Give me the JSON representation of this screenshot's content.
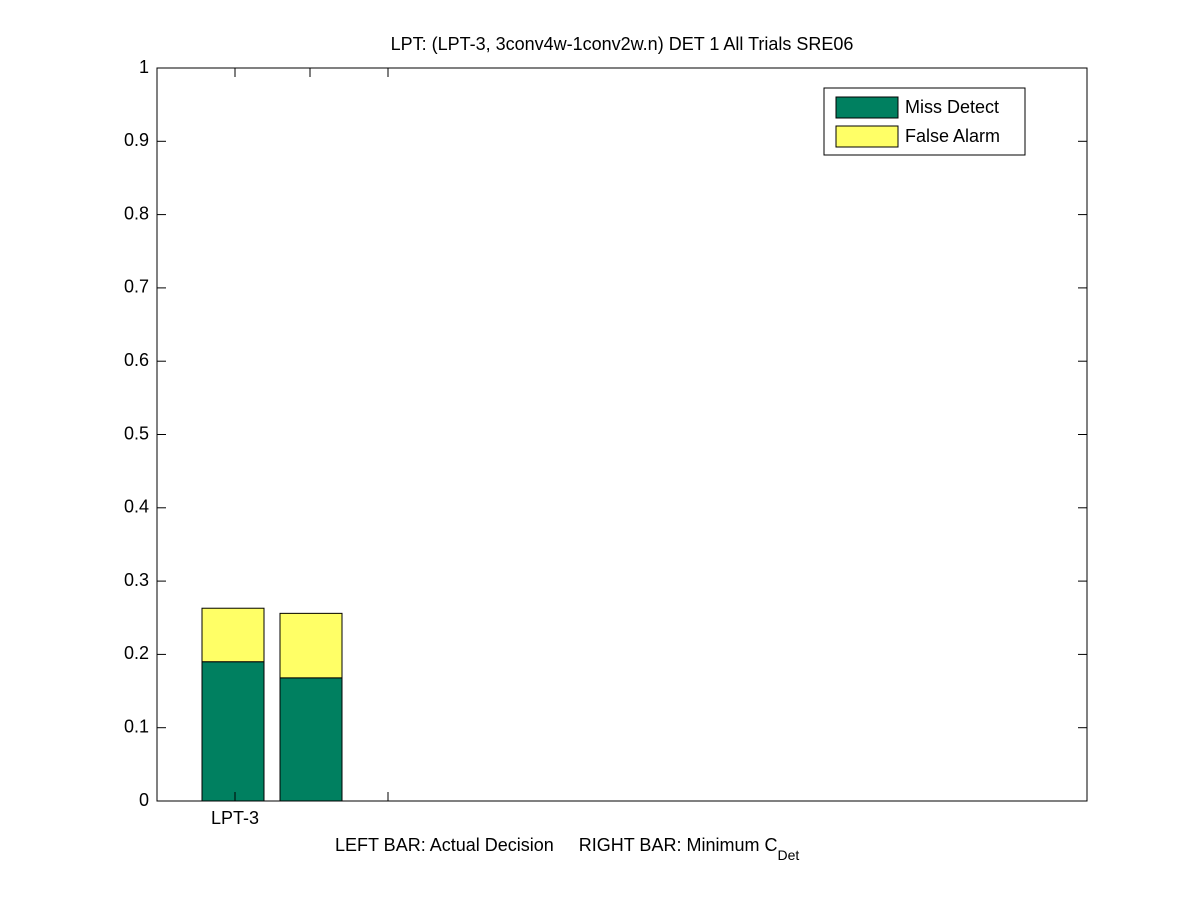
{
  "chart_data": {
    "type": "stacked-bar",
    "title": "LPT: (LPT-3, 3conv4w-1conv2w.n) DET 1 All Trials SRE06",
    "xlabel": {
      "text": "LEFT BAR: Actual Decision     RIGHT BAR: Minimum C",
      "subscript": "Det"
    },
    "categories": [
      "LPT-3",
      null
    ],
    "series": [
      {
        "name": "Miss Detect",
        "color": "#008060",
        "values": [
          0.19,
          0.168
        ]
      },
      {
        "name": "False Alarm",
        "color": "#ffff66",
        "values": [
          0.073,
          0.088
        ]
      }
    ],
    "ylim": [
      0,
      1
    ],
    "yticks": [
      0,
      0.1,
      0.2,
      0.3,
      0.4,
      0.5,
      0.6,
      0.7,
      0.8,
      0.9,
      1
    ],
    "legend": "top-right"
  }
}
